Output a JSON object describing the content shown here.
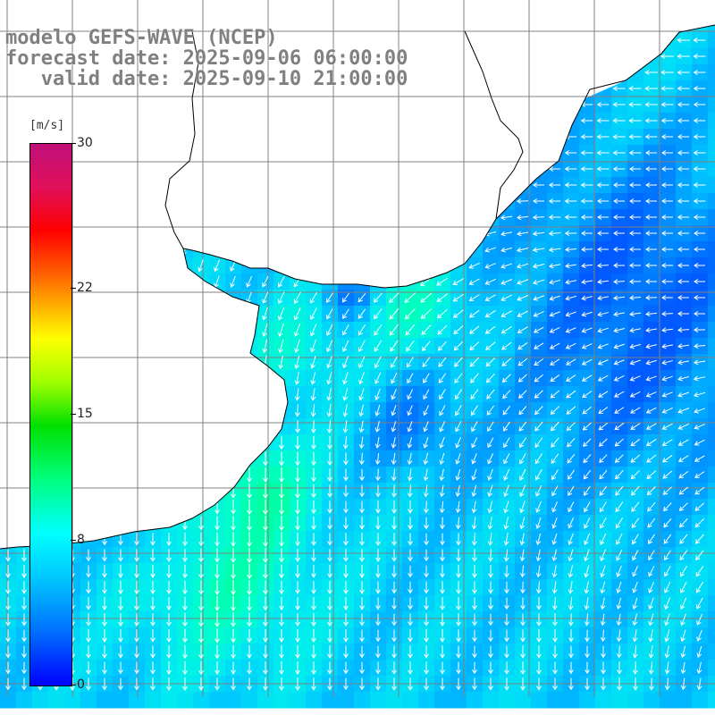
{
  "title": {
    "line1": "modelo GEFS-WAVE (NCEP)",
    "line2": "forecast date: 2025-09-06 06:00:00",
    "line3": "   valid date: 2025-09-10 21:00:00"
  },
  "colorbar": {
    "unit": "[m/s]",
    "min": 0,
    "max": 30,
    "ticks": [
      {
        "label": "30",
        "value": 30
      },
      {
        "label": "22",
        "value": 22
      },
      {
        "label": "15",
        "value": 15
      },
      {
        "label": "8",
        "value": 8
      },
      {
        "label": "0",
        "value": 0
      }
    ]
  },
  "colors": {
    "land": "#ffffff",
    "coast": "#000000",
    "grid": "#808080",
    "arrows": "#ffffff"
  }
}
